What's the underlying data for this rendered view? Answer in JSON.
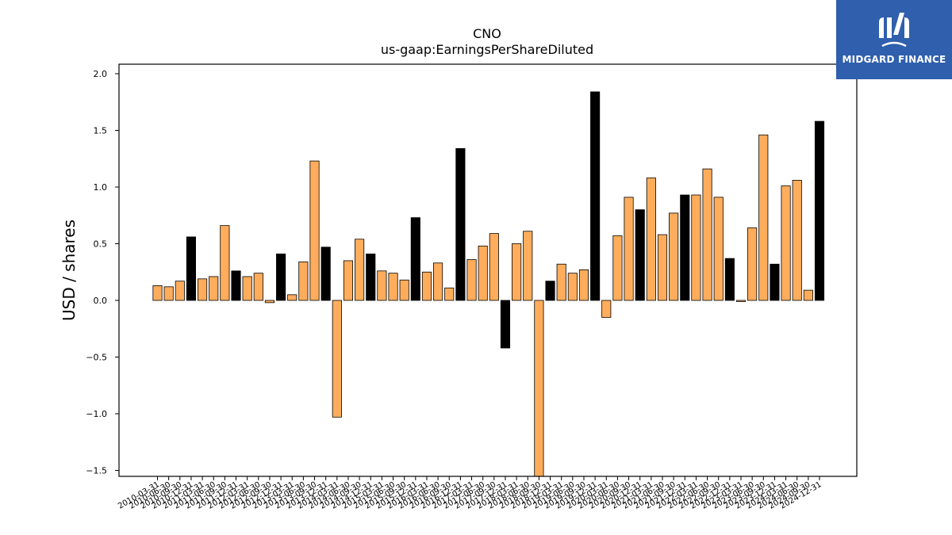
{
  "brand": {
    "name": "MIDGARD FINANCE",
    "bg_color": "#2f5fad"
  },
  "chart_data": {
    "type": "bar",
    "title": "CNO",
    "subtitle": "us-gaap:EarningsPerShareDiluted",
    "xlabel": "",
    "ylabel": "USD / shares",
    "ylim": [
      -1.55,
      2.09
    ],
    "yticks": [
      "2.0",
      "1.5",
      "1.0",
      "0.5",
      "0.0",
      "−0.5",
      "−1.0",
      "−1.5"
    ],
    "ytick_values": [
      2.0,
      1.5,
      1.0,
      0.5,
      0.0,
      -0.5,
      -1.0,
      -1.5
    ],
    "colors": {
      "quarterly": "#ffad5c",
      "annual": "#000000"
    },
    "categories": [
      "2010-03-31",
      "2010-06-30",
      "2010-09-30",
      "2010-12-31",
      "2011-03-31",
      "2011-06-30",
      "2011-09-30",
      "2011-12-31",
      "2012-03-31",
      "2012-06-30",
      "2012-09-30",
      "2012-12-31",
      "2013-03-31",
      "2013-06-30",
      "2013-09-30",
      "2013-12-31",
      "2014-03-31",
      "2014-06-30",
      "2014-09-30",
      "2014-12-31",
      "2015-03-31",
      "2015-06-30",
      "2015-09-30",
      "2015-12-31",
      "2016-03-31",
      "2016-06-30",
      "2016-09-30",
      "2016-12-31",
      "2017-03-31",
      "2017-06-30",
      "2017-09-30",
      "2017-12-31",
      "2018-03-31",
      "2018-06-30",
      "2018-09-30",
      "2018-12-31",
      "2019-03-31",
      "2019-06-30",
      "2019-09-30",
      "2019-12-31",
      "2020-03-31",
      "2020-06-30",
      "2020-09-30",
      "2020-12-31",
      "2021-03-31",
      "2021-06-30",
      "2021-09-30",
      "2021-12-31",
      "2022-03-31",
      "2022-06-30",
      "2022-09-30",
      "2022-12-31",
      "2023-03-31",
      "2023-06-30",
      "2023-09-30",
      "2023-12-31",
      "2024-03-31",
      "2024-06-30",
      "2024-09-30",
      "2024-12-31"
    ],
    "values": [
      0.13,
      0.12,
      0.17,
      0.56,
      0.19,
      0.21,
      0.66,
      0.26,
      0.21,
      0.24,
      -0.02,
      0.41,
      0.05,
      0.34,
      1.23,
      0.47,
      -1.03,
      0.35,
      0.54,
      0.41,
      0.26,
      0.24,
      0.18,
      0.73,
      0.25,
      0.33,
      0.11,
      1.34,
      0.36,
      0.48,
      0.59,
      -0.42,
      0.5,
      0.61,
      -1.6,
      0.17,
      0.32,
      0.24,
      0.27,
      1.84,
      -0.15,
      0.57,
      0.91,
      0.8,
      1.08,
      0.58,
      0.77,
      0.93,
      0.93,
      1.16,
      0.91,
      0.37,
      -0.01,
      0.64,
      1.46,
      0.32,
      1.01,
      1.06,
      0.09,
      1.58
    ],
    "annual_flags": [
      0,
      0,
      0,
      1,
      0,
      0,
      0,
      1,
      0,
      0,
      0,
      1,
      0,
      0,
      0,
      1,
      0,
      0,
      0,
      1,
      0,
      0,
      0,
      1,
      0,
      0,
      0,
      1,
      0,
      0,
      0,
      1,
      0,
      0,
      0,
      1,
      0,
      0,
      0,
      1,
      0,
      0,
      0,
      1,
      0,
      0,
      0,
      1,
      0,
      0,
      0,
      1,
      0,
      0,
      0,
      1,
      0,
      0,
      0,
      1
    ]
  }
}
